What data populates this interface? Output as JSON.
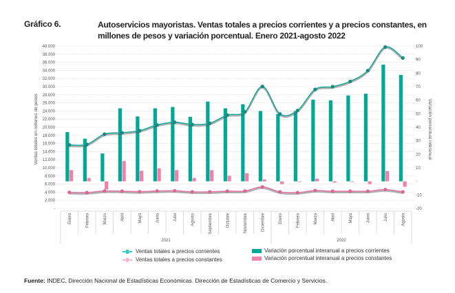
{
  "header": {
    "label": "Gráfico 6.",
    "title": "Autoservicios mayoristas. Ventas totales a precios corrientes y a precios constantes, en millones de pesos y variación porcentual. Enero 2021-agosto 2022"
  },
  "source": {
    "prefix": "Fuente:",
    "text": " INDEC, Dirección Nacional de Estadísticas Económicas. Dirección de Estadísticas de Comercio y Servicios."
  },
  "colors": {
    "teal_bar": "#00a896",
    "pink_bar": "#ee82ab",
    "teal_line": "#1fa79a",
    "pink_line": "#e17aa4",
    "line_shadow": "#555555",
    "grid": "#cccccc"
  },
  "chart_data": {
    "type": "bar+line",
    "title": "Autoservicios mayoristas. Ventas totales a precios corrientes y a precios constantes, en millones de pesos y variación porcentual. Enero 2021-agosto 2022",
    "categories": [
      "Enero",
      "Febrero",
      "Marzo",
      "Abril",
      "Mayo",
      "Junio",
      "Julio",
      "Agosto",
      "Septiembre",
      "Octubre",
      "Noviembre",
      "Diciembre",
      "Enero",
      "Febrero",
      "Marzo",
      "Abril",
      "Mayo",
      "Junio",
      "Julio",
      "Agosto"
    ],
    "groups": [
      {
        "label": "2021",
        "count": 12
      },
      {
        "label": "2022",
        "count": 8
      }
    ],
    "ylabel_left": "Ventas totales en millones de pesos",
    "ylabel_right": "Variación porcentual interanual",
    "ylim_left": [
      0,
      40000
    ],
    "ylim_right": [
      -20,
      100
    ],
    "left_ticks": [
      "-",
      "2.000",
      "4.000",
      "6.000",
      "8.000",
      "10.000",
      "12.000",
      "14.000",
      "16.000",
      "18.000",
      "20.000",
      "22.000",
      "24.000",
      "26.000",
      "28.000",
      "30.000",
      "32.000",
      "34.000",
      "36.000",
      "38.000",
      "40.000"
    ],
    "right_ticks": [
      "-20",
      "-10",
      "-",
      "10",
      "20",
      "30",
      "40",
      "50",
      "60",
      "70",
      "80",
      "90",
      "100"
    ],
    "grid": true,
    "legend_position": "bottom",
    "series": [
      {
        "name": "Variación porcentual interanual a precios corrientes",
        "kind": "bar",
        "axis": "right",
        "values": [
          36.4,
          31.5,
          20.6,
          54.0,
          48.0,
          54.0,
          55.0,
          47.7,
          59.0,
          54.0,
          57.0,
          52.0,
          49.7,
          52.0,
          60.4,
          59.9,
          63.5,
          64.8,
          86.3,
          78.7
        ]
      },
      {
        "name": "Variación porcentual interanual a precios constantes",
        "kind": "bar",
        "axis": "right",
        "values": [
          8.3,
          2.5,
          -6.0,
          15.0,
          7.8,
          9.6,
          8.3,
          2.5,
          8.3,
          4.2,
          6.0,
          1.4,
          -2.0,
          -0.5,
          2.0,
          -1.0,
          -0.5,
          -2.0,
          7.6,
          -4.0
        ]
      },
      {
        "name": "Ventas totales a precios corrientes",
        "kind": "line",
        "axis": "left",
        "values": [
          15640,
          15760,
          18300,
          18650,
          19150,
          20560,
          21240,
          20680,
          20970,
          23000,
          23780,
          30050,
          23270,
          24120,
          29320,
          30000,
          31300,
          33950,
          39780,
          37070
        ]
      },
      {
        "name": "Ventas totales a precios constantes",
        "kind": "line",
        "axis": "left",
        "values": [
          3950,
          3900,
          4290,
          4240,
          4120,
          4290,
          4350,
          4070,
          4070,
          4240,
          4290,
          5300,
          4070,
          3900,
          4400,
          4240,
          4240,
          4240,
          4630,
          4070
        ]
      }
    ]
  },
  "legend": {
    "line_current": "Ventas totales a precios corrientes",
    "line_constant": "Ventas totales a precios constantes",
    "bar_current": "Variación porcentual interanual a precios corrientes",
    "bar_constant": "Variación porcentual interanual a precios constantes"
  }
}
